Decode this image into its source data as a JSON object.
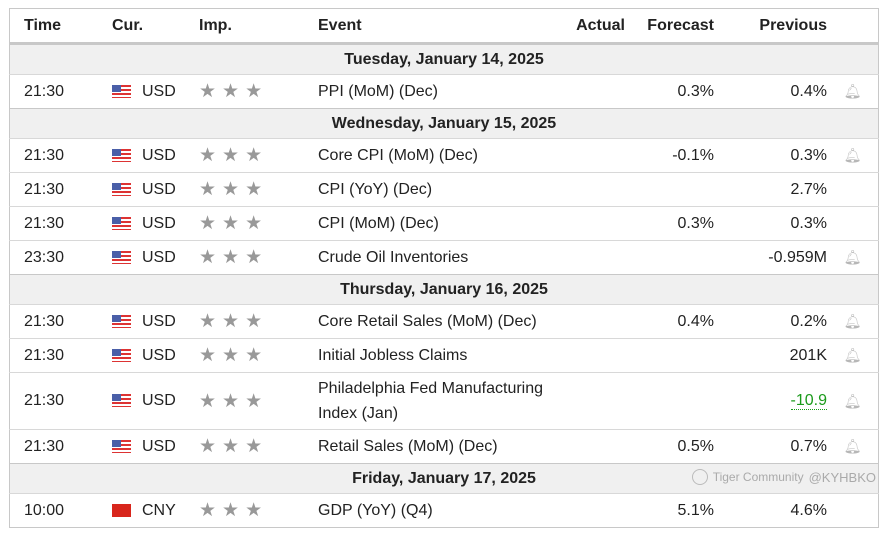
{
  "headers": {
    "time": "Time",
    "cur": "Cur.",
    "imp": "Imp.",
    "event": "Event",
    "actual": "Actual",
    "forecast": "Forecast",
    "previous": "Previous"
  },
  "groups": [
    {
      "date": "Tuesday, January 14, 2025",
      "rows": [
        {
          "time": "21:30",
          "cur": "USD",
          "flag": "us",
          "stars": 3,
          "event": "PPI (MoM) (Dec)",
          "actual": "",
          "forecast": "0.3%",
          "previous": "0.4%",
          "bell": true
        }
      ]
    },
    {
      "date": "Wednesday, January 15, 2025",
      "rows": [
        {
          "time": "21:30",
          "cur": "USD",
          "flag": "us",
          "stars": 3,
          "event": "Core CPI (MoM) (Dec)",
          "actual": "",
          "forecast": "-0.1%",
          "previous": "0.3%",
          "bell": true
        },
        {
          "time": "21:30",
          "cur": "USD",
          "flag": "us",
          "stars": 3,
          "event": "CPI (YoY) (Dec)",
          "actual": "",
          "forecast": "",
          "previous": "2.7%",
          "bell": false
        },
        {
          "time": "21:30",
          "cur": "USD",
          "flag": "us",
          "stars": 3,
          "event": "CPI (MoM) (Dec)",
          "actual": "",
          "forecast": "0.3%",
          "previous": "0.3%",
          "bell": false
        },
        {
          "time": "23:30",
          "cur": "USD",
          "flag": "us",
          "stars": 3,
          "event": "Crude Oil Inventories",
          "actual": "",
          "forecast": "",
          "previous": "-0.959M",
          "bell": true
        }
      ]
    },
    {
      "date": "Thursday, January 16, 2025",
      "rows": [
        {
          "time": "21:30",
          "cur": "USD",
          "flag": "us",
          "stars": 3,
          "event": "Core Retail Sales (MoM) (Dec)",
          "actual": "",
          "forecast": "0.4%",
          "previous": "0.2%",
          "bell": true
        },
        {
          "time": "21:30",
          "cur": "USD",
          "flag": "us",
          "stars": 3,
          "event": "Initial Jobless Claims",
          "actual": "",
          "forecast": "",
          "previous": "201K",
          "bell": true
        },
        {
          "time": "21:30",
          "cur": "USD",
          "flag": "us",
          "stars": 3,
          "event": "Philadelphia Fed Manufacturing Index (Jan)",
          "actual": "",
          "forecast": "",
          "previous": "-10.9",
          "previous_color": "#1a9a1a",
          "bell": true
        },
        {
          "time": "21:30",
          "cur": "USD",
          "flag": "us",
          "stars": 3,
          "event": "Retail Sales (MoM) (Dec)",
          "actual": "",
          "forecast": "0.5%",
          "previous": "0.7%",
          "bell": true
        }
      ]
    },
    {
      "date": "Friday, January 17, 2025",
      "rows": [
        {
          "time": "10:00",
          "cur": "CNY",
          "flag": "cn",
          "stars": 3,
          "event": "GDP (YoY) (Q4)",
          "actual": "",
          "forecast": "5.1%",
          "previous": "4.6%",
          "bell": false
        }
      ]
    }
  ],
  "watermark": {
    "brand": "Tiger Community",
    "user": "@KYHBKO"
  }
}
